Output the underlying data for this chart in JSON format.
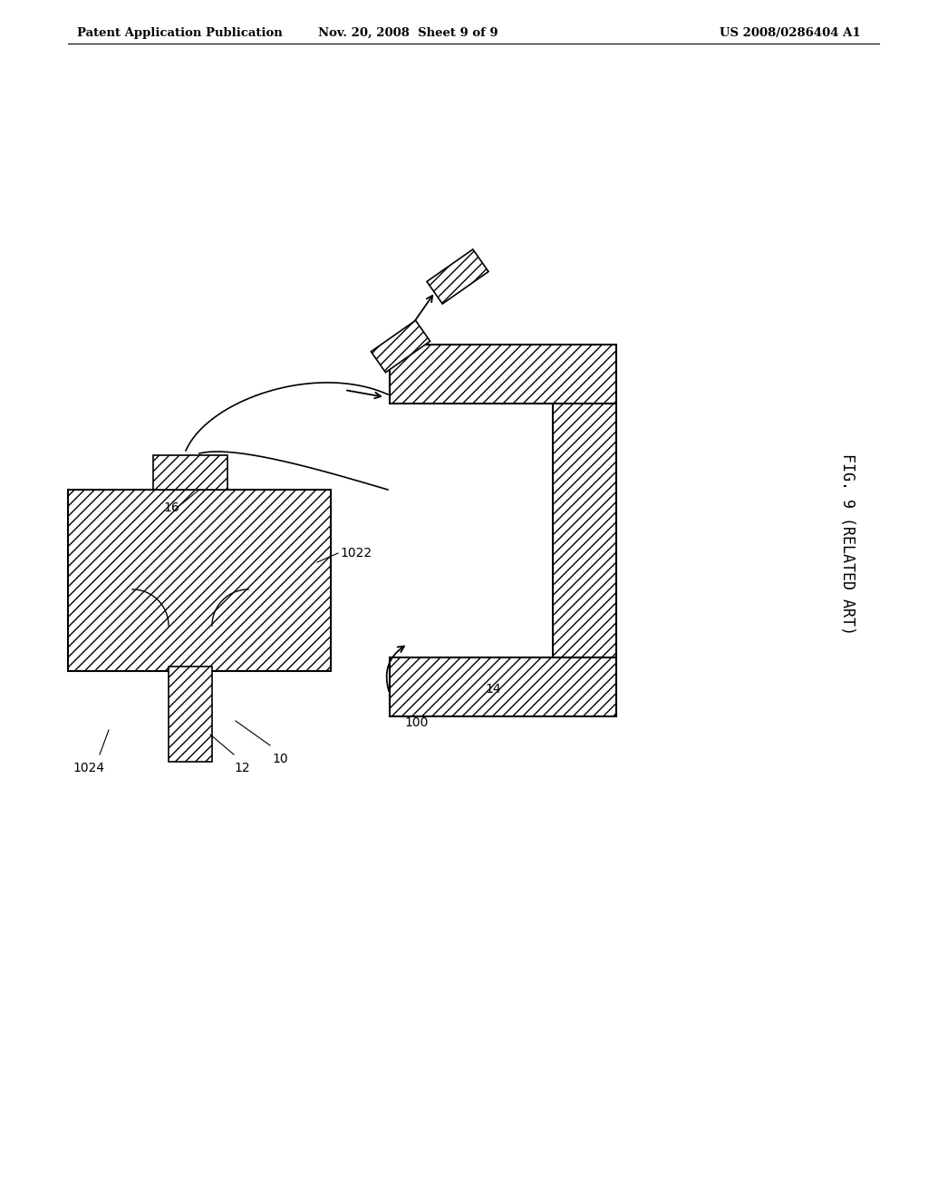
{
  "bg_color": "#ffffff",
  "header_left": "Patent Application Publication",
  "header_mid": "Nov. 20, 2008  Sheet 9 of 9",
  "header_right": "US 2008/0286404 A1",
  "fig_label": "FIG. 9 (RELATED ART)",
  "hatch_pattern": "///",
  "line_color": "#000000",
  "lw_main": 1.5,
  "lw_thin": 1.0,
  "label_fontsize": 10,
  "header_fontsize": 9.5,
  "fig_label_fontsize": 12
}
